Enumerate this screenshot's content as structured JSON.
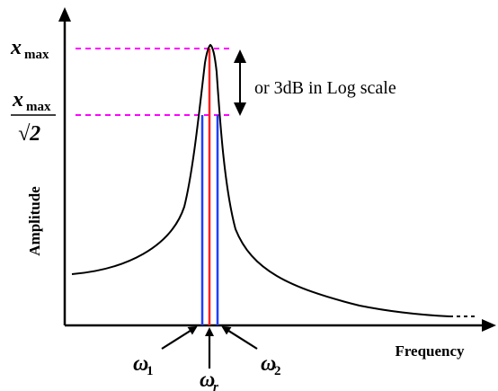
{
  "chart_data": {
    "type": "line",
    "xlabel": "Frequency",
    "ylabel": "Amplitude",
    "grid": false,
    "levels": {
      "x_max": {
        "symbol": "x",
        "subscript": "max"
      },
      "x_max_over_root2": {
        "symbol": "x",
        "subscript": "max",
        "denominator": "√2"
      }
    },
    "annotation": "or 3dB in Log scale",
    "frequency_markers": [
      {
        "symbol": "ω",
        "subscript": "1",
        "color": "#1f3fff"
      },
      {
        "symbol": "ω",
        "subscript": "r",
        "color": "#ff2020"
      },
      {
        "symbol": "ω",
        "subscript": "2",
        "color": "#1f3fff"
      }
    ],
    "curve_color": "#000000",
    "level_line_color": "#ff00ff"
  }
}
